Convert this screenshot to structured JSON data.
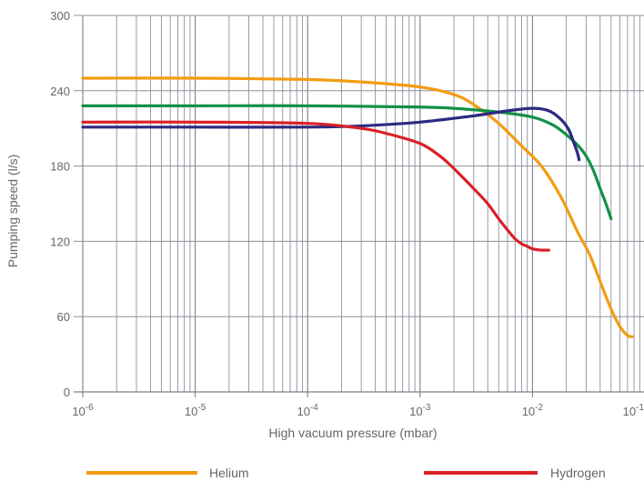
{
  "chart_data": {
    "type": "line",
    "title": "",
    "xlabel": "High vacuum pressure (mbar)",
    "ylabel": "Pumping speed (l/s)",
    "x_scale": "log",
    "xlim": [
      1e-06,
      0.1
    ],
    "ylim": [
      0,
      300
    ],
    "grid": true,
    "x_tick_labels": [
      {
        "value": 1e-06,
        "base": "10",
        "exp": "-6"
      },
      {
        "value": 1e-05,
        "base": "10",
        "exp": "-5"
      },
      {
        "value": 0.0001,
        "base": "10",
        "exp": "-4"
      },
      {
        "value": 0.001,
        "base": "10",
        "exp": "-3"
      },
      {
        "value": 0.01,
        "base": "10",
        "exp": "-2"
      },
      {
        "value": 0.1,
        "base": "10",
        "exp": "-1"
      }
    ],
    "y_ticks": [
      0,
      60,
      120,
      180,
      240,
      300
    ],
    "legend_position": "bottom",
    "series": [
      {
        "name": "Helium",
        "color": "#f39c12",
        "x": [
          1e-06,
          1e-05,
          0.0001,
          0.0003,
          0.001,
          0.002,
          0.003,
          0.005,
          0.008,
          0.012,
          0.018,
          0.025,
          0.032,
          0.04,
          0.05,
          0.06,
          0.07,
          0.077
        ],
        "y": [
          250,
          250,
          249,
          247,
          243,
          237,
          229,
          214,
          196,
          180,
          155,
          128,
          110,
          88,
          66,
          52,
          45,
          44
        ]
      },
      {
        "name": "",
        "color": "#119146",
        "x": [
          1e-06,
          1e-05,
          0.0001,
          0.001,
          0.002,
          0.005,
          0.01,
          0.015,
          0.02,
          0.025,
          0.03,
          0.035,
          0.04,
          0.045,
          0.05
        ],
        "y": [
          228,
          228,
          228,
          227,
          226,
          223,
          219,
          213,
          205,
          197,
          188,
          176,
          162,
          150,
          138
        ]
      },
      {
        "name": "",
        "color": "#2c2a82",
        "x": [
          1e-06,
          1e-05,
          0.0001,
          0.0003,
          0.001,
          0.003,
          0.006,
          0.01,
          0.014,
          0.018,
          0.021,
          0.023,
          0.025,
          0.026
        ],
        "y": [
          211,
          211,
          211,
          212,
          215,
          220,
          224,
          226,
          224,
          217,
          209,
          200,
          191,
          185
        ]
      },
      {
        "name": "Hydrogen",
        "color": "#d92026",
        "x": [
          1e-06,
          1e-05,
          0.0001,
          0.0003,
          0.0005,
          0.001,
          0.0015,
          0.002,
          0.003,
          0.004,
          0.005,
          0.006,
          0.007,
          0.008,
          0.009,
          0.01,
          0.012,
          0.014
        ],
        "y": [
          215,
          215,
          214,
          210,
          206,
          198,
          188,
          178,
          162,
          150,
          138,
          129,
          122,
          118,
          116,
          114,
          113,
          113
        ]
      }
    ]
  }
}
